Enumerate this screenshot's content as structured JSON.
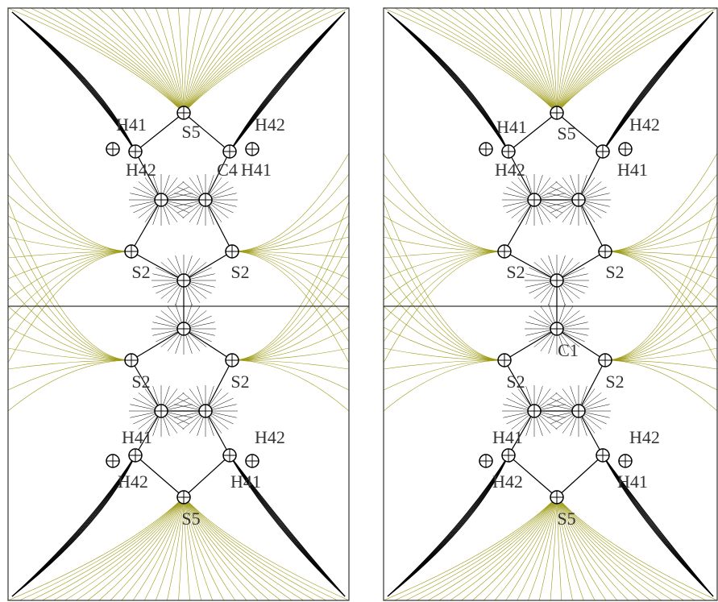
{
  "panels": [
    {
      "labels": [
        "H41",
        "S5",
        "H42",
        "H42",
        "C4",
        "H41",
        "S2",
        "S2",
        "S2",
        "S2",
        "H41",
        "H42",
        "H42",
        "H41",
        "S5"
      ]
    },
    {
      "labels": [
        "H41",
        "S5",
        "H42",
        "H42",
        "H41",
        "S2",
        "S2",
        "C1",
        "S2",
        "S2",
        "H41",
        "H42",
        "H42",
        "H41",
        "S5"
      ]
    }
  ]
}
